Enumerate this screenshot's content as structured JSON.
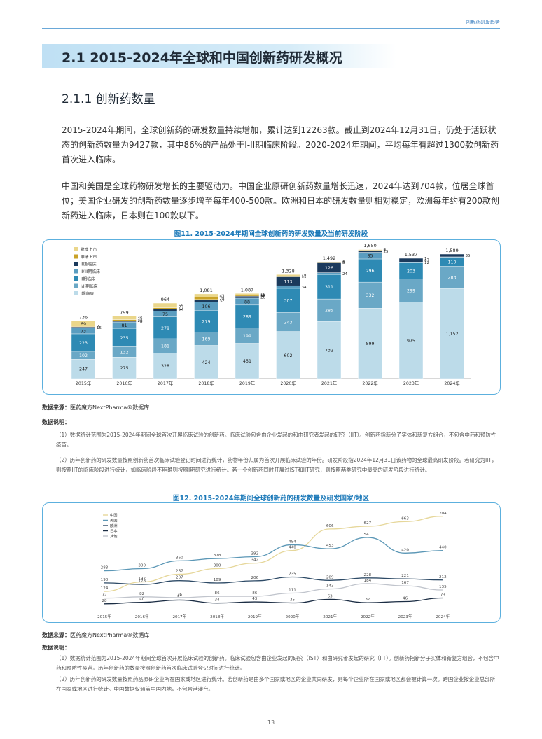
{
  "header": {
    "right_text": "创新药研发趋势"
  },
  "section": {
    "title": "2.1  2015-2024年全球和中国创新药研发概况",
    "subtitle": "2.1.1 创新药数量"
  },
  "paragraphs": [
    "2015-2024年期间，全球创新药的研发数量持续增加，累计达到12263款。截止到2024年12月31日，仍处于活跃状态的创新药数量为9427款，其中86%的产品处于I-II期临床阶段。2020-2024年期间，平均每年有超过1300款创新药首次进入临床。",
    "中国和美国是全球药物研发增长的主要驱动力。中国企业原研创新药数量增长迅速，2024年达到704款，位居全球首位；美国企业研发的创新药数量逐步增至每年400-500款。欧洲和日本的研发数量则相对稳定，欧洲每年约有200款创新药进入临床，日本则在100款以下。"
  ],
  "figure1": {
    "title": "图11. 2015-2024年期间全球创新药的研发数量及当前研发阶段"
  },
  "figure2": {
    "title": "图12. 2015-2024年期间全球创新药的研发数量及研发国家/地区"
  },
  "notes1": {
    "source_label": "数据来源：",
    "source": "医药魔方NextPharma®数据库",
    "heading": "数据说明：",
    "items": [
      "（1）数据统计范围为2015-2024年期间全球首次开展临床试验的创新药。临床试验包含由企业发起的和由研究者发起的研究（IIT）。创新药指新分子实体和新复方组合，不包含中药和预防性疫苗。",
      "（2）历年创新药的研发数量按照创新药首次临床试验登记时间进行统计，药物年份归属为首次开展临床试验的年份。研发阶段指2024年12月31日该药物的全球最高研发阶段。若研究为IIT，则按照IIT的临床阶段进行统计，如临床阶段不明确则按照I期研究进行统计。若一个创新药同时开展过IST和IIT研究，则按照两类研究中最高的研发阶段进行统计。"
    ]
  },
  "notes2": {
    "source_label": "数据来源：",
    "source": "医药魔方NextPharma®数据库",
    "heading": "数据说明：",
    "items": [
      "（1）数据统计范围为2015-2024年期间全球首次开展临床试验的创新药。临床试验包含由企业发起的研究（IST）和由研究者发起的研究（IIT）。创新药指新分子实体和新复方组合，不包含中药和预防性疫苗。历年创新药的数量按照创新药首次临床试验登记时间进行统计。",
      "（2）历年创新药的研发数量按照药品原研企业所在国家或地区进行统计。若创新药是由多个国家或地区的企业共同研发，则每个企业所在国家或地区都会被计算一次。跨国企业按企业总部所在国家或地区进行统计。中国数据仅涵盖中国内地，不包含港澳台。"
    ]
  },
  "page_number": "13",
  "chart_data": [
    {
      "type": "bar",
      "stacked": true,
      "categories": [
        "2015年",
        "2016年",
        "2017年",
        "2018年",
        "2019年",
        "2020年",
        "2021年",
        "2022年",
        "2023年",
        "2024年"
      ],
      "totals": [
        "736",
        "799",
        "964",
        "1,081",
        "1,087",
        "1,328",
        "1,492",
        "1,650",
        "1,537",
        "1,589"
      ],
      "series": [
        {
          "name": "I期临床",
          "color": "#bcdbe9",
          "values": [
            247,
            275,
            328,
            424,
            451,
            602,
            732,
            899,
            975,
            1152
          ],
          "labels": [
            "247",
            "275",
            "328",
            "424",
            "451",
            "602",
            "732",
            "899",
            "975",
            "1,152"
          ]
        },
        {
          "name": "I/II期临床",
          "color": "#6aa8c6",
          "values": [
            102,
            132,
            181,
            169,
            199,
            243,
            285,
            332,
            299,
            283
          ],
          "labels": [
            "102",
            "132",
            "181",
            "169",
            "199",
            "243",
            "285",
            "332",
            "299",
            "283"
          ]
        },
        {
          "name": "II期临床",
          "color": "#2e8ab4",
          "values": [
            223,
            235,
            279,
            279,
            289,
            307,
            311,
            296,
            203,
            110
          ],
          "labels": [
            "223",
            "235",
            "279",
            "279",
            "289",
            "307",
            "311",
            "296",
            "203",
            "110"
          ]
        },
        {
          "name": "II/III期临床",
          "color": "#5a9dc0",
          "values": [
            73,
            81,
            75,
            106,
            88,
            34,
            24,
            85,
            12,
            9
          ],
          "labels": [
            "73",
            "81",
            "75",
            "106",
            "88",
            "34",
            "24",
            "85",
            "12",
            ""
          ]
        },
        {
          "name": "III期临床",
          "color": "#1b3a5c",
          "values": [
            15,
            10,
            25,
            32,
            26,
            113,
            126,
            25,
            47,
            35
          ],
          "labels": [
            "15",
            "10",
            "25",
            "32",
            "26",
            "113",
            "126",
            "25",
            "47",
            "35"
          ]
        },
        {
          "name": "申请上市",
          "color": "#c9a227",
          "values": [
            7,
            20,
            17,
            28,
            16,
            11,
            8,
            7,
            1,
            0
          ],
          "labels": [
            "7",
            "20",
            "17",
            "28",
            "16",
            "11",
            "8",
            "7",
            "1",
            ""
          ]
        },
        {
          "name": "批准上市",
          "color": "#ead68a",
          "values": [
            69,
            46,
            59,
            43,
            18,
            18,
            6,
            6,
            0,
            0
          ],
          "labels": [
            "69",
            "46",
            "59",
            "43",
            "18",
            "18",
            "6",
            "6",
            "",
            ""
          ]
        }
      ]
    },
    {
      "type": "line",
      "x": [
        "2015年",
        "2016年",
        "2017年",
        "2018年",
        "2019年",
        "2020年",
        "2021年",
        "2022年",
        "2023年",
        "2024年"
      ],
      "series": [
        {
          "name": "中国",
          "color": "#e6d79a",
          "values": [
            124,
            197,
            257,
            300,
            342,
            440,
            606,
            627,
            663,
            704
          ]
        },
        {
          "name": "美国",
          "color": "#5b97b6",
          "values": [
            283,
            300,
            360,
            378,
            392,
            484,
            453,
            541,
            420,
            440
          ]
        },
        {
          "name": "欧洲",
          "color": "#2d4a66",
          "values": [
            190,
            178,
            207,
            189,
            206,
            235,
            209,
            228,
            221,
            212
          ]
        },
        {
          "name": "日本",
          "color": "#1b2d44",
          "values": [
            28,
            40,
            57,
            34,
            43,
            35,
            63,
            37,
            46,
            73
          ]
        },
        {
          "name": "其他",
          "color": "#c0c4cc",
          "values": [
            72,
            82,
            76,
            86,
            86,
            111,
            143,
            184,
            167,
            135
          ]
        }
      ]
    }
  ]
}
